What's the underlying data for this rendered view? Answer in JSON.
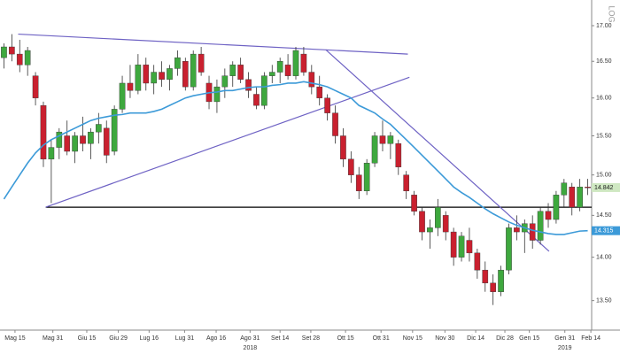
{
  "chart_data": {
    "type": "candlestick",
    "log_scale": true,
    "axis_label": "LOG",
    "up_color": "#3ea83e",
    "down_color": "#c9202f",
    "ylim": [
      13.17,
      17.37
    ],
    "yticks": [
      {
        "value": 13.5,
        "label": "13.50"
      },
      {
        "value": 14,
        "label": "14.00"
      },
      {
        "value": 14.5,
        "label": "14.50"
      },
      {
        "value": 15,
        "label": "15.00"
      },
      {
        "value": 15.5,
        "label": "15.50"
      },
      {
        "value": 16,
        "label": "16.00"
      },
      {
        "value": 16.5,
        "label": "16.50"
      },
      {
        "value": 17,
        "label": "17.00"
      }
    ],
    "xlim": [
      -0.5,
      74.5
    ],
    "xticks": [
      {
        "value": 1.4,
        "label": "Mag 15"
      },
      {
        "value": 6.2,
        "label": "Mag 31"
      },
      {
        "value": 10.5,
        "label": "Giu 15"
      },
      {
        "value": 14.5,
        "label": "Giu 29"
      },
      {
        "value": 18.4,
        "label": "Lug 16"
      },
      {
        "value": 22.9,
        "label": "Lug 31"
      },
      {
        "value": 26.9,
        "label": "Ago 16"
      },
      {
        "value": 31.2,
        "label": "Ago 31"
      },
      {
        "value": 35.0,
        "label": "Set 14"
      },
      {
        "value": 38.9,
        "label": "Set 28"
      },
      {
        "value": 43.3,
        "label": "Ott 15"
      },
      {
        "value": 47.8,
        "label": "Ott 31"
      },
      {
        "value": 51.8,
        "label": "Nov 15"
      },
      {
        "value": 55.9,
        "label": "Nov 30"
      },
      {
        "value": 59.8,
        "label": "Dic 14"
      },
      {
        "value": 63.5,
        "label": "Dic 28"
      },
      {
        "value": 66.6,
        "label": "Gen 15"
      },
      {
        "value": 71.1,
        "label": "Gen 31"
      },
      {
        "value": 74.4,
        "label": "Feb 14"
      }
    ],
    "year_labels": [
      {
        "value": 31.2,
        "label": "2018"
      },
      {
        "value": 71.1,
        "label": "2019"
      }
    ],
    "candles": [
      [
        16.55,
        16.75,
        16.4,
        16.7
      ],
      [
        16.7,
        16.88,
        16.5,
        16.6
      ],
      [
        16.6,
        16.8,
        16.35,
        16.45
      ],
      [
        16.45,
        16.7,
        16.3,
        16.65
      ],
      [
        16.3,
        16.35,
        15.9,
        16.0
      ],
      [
        15.9,
        15.95,
        15.1,
        15.2
      ],
      [
        15.2,
        15.45,
        14.65,
        15.35
      ],
      [
        15.35,
        15.6,
        15.2,
        15.55
      ],
      [
        15.5,
        15.7,
        15.25,
        15.3
      ],
      [
        15.3,
        15.55,
        15.15,
        15.5
      ],
      [
        15.5,
        15.75,
        15.3,
        15.4
      ],
      [
        15.4,
        15.6,
        15.2,
        15.55
      ],
      [
        15.55,
        15.8,
        15.4,
        15.65
      ],
      [
        15.6,
        15.7,
        15.15,
        15.25
      ],
      [
        15.3,
        15.9,
        15.25,
        15.85
      ],
      [
        15.85,
        16.3,
        15.8,
        16.2
      ],
      [
        16.2,
        16.45,
        16.0,
        16.1
      ],
      [
        16.1,
        16.6,
        16.05,
        16.45
      ],
      [
        16.45,
        16.55,
        16.1,
        16.2
      ],
      [
        16.2,
        16.45,
        16.05,
        16.35
      ],
      [
        16.35,
        16.5,
        16.15,
        16.25
      ],
      [
        16.25,
        16.45,
        16.1,
        16.4
      ],
      [
        16.4,
        16.65,
        16.3,
        16.55
      ],
      [
        16.5,
        16.55,
        16.1,
        16.15
      ],
      [
        16.15,
        16.65,
        16.1,
        16.6
      ],
      [
        16.6,
        16.7,
        16.3,
        16.35
      ],
      [
        16.2,
        16.3,
        15.85,
        15.95
      ],
      [
        15.95,
        16.25,
        15.8,
        16.15
      ],
      [
        16.15,
        16.4,
        16.0,
        16.3
      ],
      [
        16.3,
        16.5,
        16.15,
        16.45
      ],
      [
        16.45,
        16.55,
        16.2,
        16.25
      ],
      [
        16.25,
        16.35,
        16.0,
        16.1
      ],
      [
        16.05,
        16.15,
        15.85,
        15.9
      ],
      [
        15.9,
        16.35,
        15.85,
        16.3
      ],
      [
        16.3,
        16.45,
        16.2,
        16.35
      ],
      [
        16.35,
        16.55,
        16.2,
        16.5
      ],
      [
        16.45,
        16.6,
        16.25,
        16.3
      ],
      [
        16.3,
        16.7,
        16.25,
        16.65
      ],
      [
        16.6,
        16.7,
        16.3,
        16.35
      ],
      [
        16.35,
        16.45,
        16.05,
        16.15
      ],
      [
        16.15,
        16.3,
        15.9,
        16.0
      ],
      [
        16.0,
        16.05,
        15.7,
        15.8
      ],
      [
        15.8,
        15.9,
        15.4,
        15.5
      ],
      [
        15.5,
        15.6,
        15.1,
        15.2
      ],
      [
        15.2,
        15.3,
        14.9,
        15.0
      ],
      [
        15.0,
        15.1,
        14.7,
        14.8
      ],
      [
        14.8,
        15.2,
        14.75,
        15.15
      ],
      [
        15.15,
        15.55,
        15.1,
        15.5
      ],
      [
        15.5,
        15.7,
        15.3,
        15.4
      ],
      [
        15.4,
        15.55,
        15.2,
        15.5
      ],
      [
        15.4,
        15.45,
        15.0,
        15.1
      ],
      [
        15.0,
        15.05,
        14.7,
        14.8
      ],
      [
        14.75,
        14.8,
        14.5,
        14.55
      ],
      [
        14.55,
        14.6,
        14.2,
        14.3
      ],
      [
        14.3,
        14.45,
        14.1,
        14.35
      ],
      [
        14.35,
        14.7,
        14.25,
        14.6
      ],
      [
        14.5,
        14.55,
        14.2,
        14.3
      ],
      [
        14.3,
        14.35,
        13.9,
        14.0
      ],
      [
        14.0,
        14.3,
        13.95,
        14.25
      ],
      [
        14.2,
        14.35,
        13.95,
        14.05
      ],
      [
        14.05,
        14.1,
        13.75,
        13.85
      ],
      [
        13.85,
        13.95,
        13.6,
        13.7
      ],
      [
        13.7,
        13.8,
        13.45,
        13.6
      ],
      [
        13.6,
        13.9,
        13.55,
        13.85
      ],
      [
        13.85,
        14.4,
        13.8,
        14.35
      ],
      [
        14.35,
        14.5,
        14.2,
        14.3
      ],
      [
        14.3,
        14.45,
        14.05,
        14.4
      ],
      [
        14.4,
        14.5,
        14.1,
        14.2
      ],
      [
        14.2,
        14.6,
        14.15,
        14.55
      ],
      [
        14.55,
        14.65,
        14.35,
        14.45
      ],
      [
        14.45,
        14.8,
        14.4,
        14.75
      ],
      [
        14.75,
        14.95,
        14.6,
        14.9
      ],
      [
        14.85,
        14.9,
        14.5,
        14.6
      ],
      [
        14.6,
        14.95,
        14.55,
        14.85
      ],
      [
        14.85,
        14.95,
        14.75,
        14.842
      ]
    ],
    "ma": {
      "color": "#3c9ad8",
      "values": [
        14.7,
        14.85,
        15.0,
        15.15,
        15.28,
        15.38,
        15.45,
        15.5,
        15.55,
        15.6,
        15.65,
        15.7,
        15.73,
        15.75,
        15.77,
        15.78,
        15.8,
        15.8,
        15.8,
        15.82,
        15.85,
        15.9,
        15.95,
        16.0,
        16.03,
        16.05,
        16.07,
        16.08,
        16.1,
        16.1,
        16.12,
        16.14,
        16.15,
        16.15,
        16.17,
        16.18,
        16.2,
        16.2,
        16.22,
        16.2,
        16.18,
        16.15,
        16.1,
        16.05,
        16.0,
        15.9,
        15.85,
        15.8,
        15.72,
        15.65,
        15.55,
        15.45,
        15.35,
        15.25,
        15.15,
        15.05,
        14.95,
        14.85,
        14.78,
        14.72,
        14.65,
        14.58,
        14.52,
        14.47,
        14.42,
        14.38,
        14.35,
        14.32,
        14.3,
        14.28,
        14.27,
        14.27,
        14.29,
        14.31,
        14.315
      ]
    },
    "last_price": 14.842,
    "ma_last": 14.315,
    "support": {
      "value": 14.6,
      "from": 5.3,
      "color": "#000000"
    },
    "trendline_color": "#6e62c4",
    "trendlines": [
      {
        "x": [
          1.8,
          51.2
        ],
        "y": [
          16.88,
          16.6
        ]
      },
      {
        "x": [
          5.3,
          51.4
        ],
        "y": [
          14.6,
          16.28
        ]
      },
      {
        "x": [
          40.8,
          69.1
        ],
        "y": [
          16.66,
          14.07
        ]
      }
    ]
  }
}
